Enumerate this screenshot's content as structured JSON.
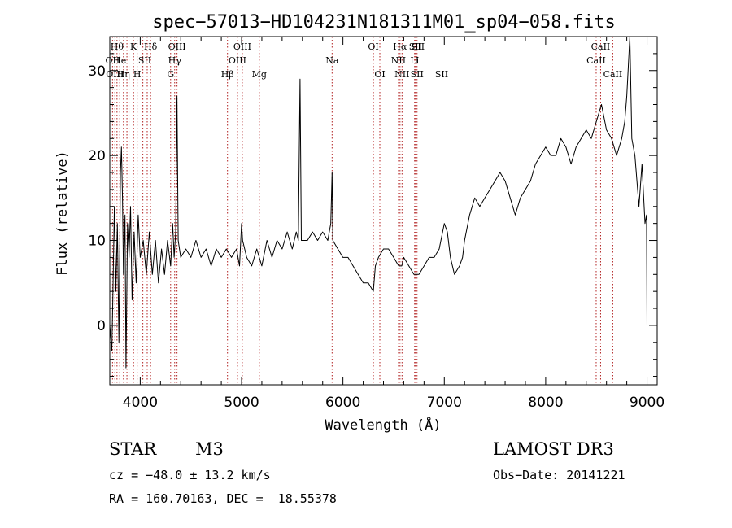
{
  "chart_data": {
    "type": "line",
    "title": "spec−57013−HD104231N181311M01_sp04−058.fits",
    "xlabel": "Wavelength (Å)",
    "ylabel": "Flux (relative)",
    "xlim": [
      3700,
      9100
    ],
    "ylim": [
      -7,
      34
    ],
    "xticks": [
      4000,
      5000,
      6000,
      7000,
      8000,
      9000
    ],
    "xtick_labels": [
      "4000",
      "5000",
      "6000",
      "7000",
      "8000",
      "9000"
    ],
    "yticks": [
      0,
      10,
      20,
      30
    ],
    "ytick_labels": [
      "0",
      "10",
      "20",
      "30"
    ],
    "grid": false,
    "series": [
      {
        "name": "flux",
        "color": "#000000",
        "points": [
          [
            3700,
            0
          ],
          [
            3720,
            -3
          ],
          [
            3730,
            3
          ],
          [
            3745,
            14
          ],
          [
            3760,
            4
          ],
          [
            3775,
            12
          ],
          [
            3790,
            -2
          ],
          [
            3805,
            18
          ],
          [
            3815,
            21
          ],
          [
            3825,
            15
          ],
          [
            3835,
            6
          ],
          [
            3850,
            13
          ],
          [
            3860,
            -5
          ],
          [
            3875,
            12
          ],
          [
            3890,
            8
          ],
          [
            3905,
            14
          ],
          [
            3920,
            3
          ],
          [
            3940,
            11
          ],
          [
            3960,
            5
          ],
          [
            3980,
            13
          ],
          [
            4000,
            8
          ],
          [
            4030,
            10
          ],
          [
            4060,
            6
          ],
          [
            4090,
            11
          ],
          [
            4120,
            6
          ],
          [
            4150,
            10
          ],
          [
            4180,
            5
          ],
          [
            4210,
            9
          ],
          [
            4240,
            6
          ],
          [
            4270,
            10
          ],
          [
            4300,
            7
          ],
          [
            4320,
            12
          ],
          [
            4335,
            8
          ],
          [
            4350,
            11
          ],
          [
            4363,
            27
          ],
          [
            4375,
            10
          ],
          [
            4400,
            8
          ],
          [
            4450,
            9
          ],
          [
            4500,
            8
          ],
          [
            4550,
            10
          ],
          [
            4600,
            8
          ],
          [
            4650,
            9
          ],
          [
            4700,
            7
          ],
          [
            4750,
            9
          ],
          [
            4800,
            8
          ],
          [
            4850,
            9
          ],
          [
            4900,
            8
          ],
          [
            4950,
            9
          ],
          [
            4980,
            7
          ],
          [
            5000,
            12
          ],
          [
            5010,
            10
          ],
          [
            5050,
            8
          ],
          [
            5100,
            7
          ],
          [
            5150,
            9
          ],
          [
            5200,
            7
          ],
          [
            5250,
            10
          ],
          [
            5300,
            8
          ],
          [
            5350,
            10
          ],
          [
            5400,
            9
          ],
          [
            5450,
            11
          ],
          [
            5500,
            9
          ],
          [
            5540,
            11
          ],
          [
            5560,
            10
          ],
          [
            5577,
            29
          ],
          [
            5590,
            10
          ],
          [
            5650,
            10
          ],
          [
            5700,
            11
          ],
          [
            5750,
            10
          ],
          [
            5800,
            11
          ],
          [
            5850,
            10
          ],
          [
            5880,
            12
          ],
          [
            5893,
            18
          ],
          [
            5900,
            10
          ],
          [
            5950,
            9
          ],
          [
            6000,
            8
          ],
          [
            6050,
            8
          ],
          [
            6100,
            7
          ],
          [
            6150,
            6
          ],
          [
            6200,
            5
          ],
          [
            6250,
            5
          ],
          [
            6300,
            4
          ],
          [
            6320,
            7
          ],
          [
            6350,
            8
          ],
          [
            6400,
            9
          ],
          [
            6450,
            9
          ],
          [
            6500,
            8
          ],
          [
            6550,
            7
          ],
          [
            6580,
            7
          ],
          [
            6600,
            8
          ],
          [
            6650,
            7
          ],
          [
            6700,
            6
          ],
          [
            6750,
            6
          ],
          [
            6800,
            7
          ],
          [
            6850,
            8
          ],
          [
            6900,
            8
          ],
          [
            6950,
            9
          ],
          [
            7000,
            12
          ],
          [
            7030,
            11
          ],
          [
            7060,
            8
          ],
          [
            7100,
            6
          ],
          [
            7150,
            7
          ],
          [
            7180,
            8
          ],
          [
            7200,
            10
          ],
          [
            7250,
            13
          ],
          [
            7300,
            15
          ],
          [
            7350,
            14
          ],
          [
            7400,
            15
          ],
          [
            7450,
            16
          ],
          [
            7500,
            17
          ],
          [
            7550,
            18
          ],
          [
            7600,
            17
          ],
          [
            7650,
            15
          ],
          [
            7700,
            13
          ],
          [
            7750,
            15
          ],
          [
            7800,
            16
          ],
          [
            7850,
            17
          ],
          [
            7900,
            19
          ],
          [
            7950,
            20
          ],
          [
            8000,
            21
          ],
          [
            8050,
            20
          ],
          [
            8100,
            20
          ],
          [
            8150,
            22
          ],
          [
            8200,
            21
          ],
          [
            8250,
            19
          ],
          [
            8300,
            21
          ],
          [
            8350,
            22
          ],
          [
            8400,
            23
          ],
          [
            8450,
            22
          ],
          [
            8500,
            24
          ],
          [
            8550,
            26
          ],
          [
            8600,
            23
          ],
          [
            8650,
            22
          ],
          [
            8700,
            20
          ],
          [
            8750,
            22
          ],
          [
            8780,
            24
          ],
          [
            8800,
            27
          ],
          [
            8830,
            34
          ],
          [
            8850,
            22
          ],
          [
            8880,
            20
          ],
          [
            8900,
            17
          ],
          [
            8920,
            14
          ],
          [
            8950,
            19
          ],
          [
            8980,
            12
          ],
          [
            8995,
            13
          ],
          [
            9000,
            0
          ]
        ]
      }
    ],
    "line_markers": {
      "color": "#b22222",
      "lines": [
        {
          "wavelength": 3727,
          "label": "OII",
          "row": 2
        },
        {
          "wavelength": 3750,
          "label": "OIII",
          "row": 3
        },
        {
          "wavelength": 3771,
          "label": "Hθ",
          "row": 1
        },
        {
          "wavelength": 3798,
          "label": "He",
          "row": 2
        },
        {
          "wavelength": 3835,
          "label": "Hη",
          "row": 3
        },
        {
          "wavelength": 3869,
          "label": "",
          "row": 0
        },
        {
          "wavelength": 3889,
          "label": "",
          "row": 0
        },
        {
          "wavelength": 3934,
          "label": "K",
          "row": 1
        },
        {
          "wavelength": 3970,
          "label": "H",
          "row": 3
        },
        {
          "wavelength": 4026,
          "label": "",
          "row": 0
        },
        {
          "wavelength": 4069,
          "label": "",
          "row": 0
        },
        {
          "wavelength": 4102,
          "label": "Hδ",
          "row": 1
        },
        {
          "wavelength": 4300,
          "label": "G",
          "row": 3
        },
        {
          "wavelength": 4340,
          "label": "Hγ",
          "row": 2
        },
        {
          "wavelength": 4363,
          "label": "OIII",
          "row": 1
        },
        {
          "wavelength": 4861,
          "label": "Hβ",
          "row": 3
        },
        {
          "wavelength": 4959,
          "label": "OIII",
          "row": 2
        },
        {
          "wavelength": 5007,
          "label": "OIII",
          "row": 1
        },
        {
          "wavelength": 5175,
          "label": "Mg",
          "row": 3
        },
        {
          "wavelength": 5893,
          "label": "Na",
          "row": 2
        },
        {
          "wavelength": 6300,
          "label": "OI",
          "row": 1
        },
        {
          "wavelength": 6364,
          "label": "OI",
          "row": 3
        },
        {
          "wavelength": 6548,
          "label": "NII",
          "row": 2
        },
        {
          "wavelength": 6563,
          "label": "Hα",
          "row": 1
        },
        {
          "wavelength": 6583,
          "label": "NII",
          "row": 3
        },
        {
          "wavelength": 6707,
          "label": "Li",
          "row": 2
        },
        {
          "wavelength": 6716,
          "label": "SII",
          "row": 1
        },
        {
          "wavelength": 6731,
          "label": "SII",
          "row": 3
        },
        {
          "wavelength": 8498,
          "label": "CaII",
          "row": 2
        },
        {
          "wavelength": 8542,
          "label": "CaII",
          "row": 1
        },
        {
          "wavelength": 8662,
          "label": "CaII",
          "row": 3
        }
      ]
    }
  },
  "info": {
    "class_label": "STAR",
    "subclass": "M3",
    "survey": "LAMOST DR3",
    "redshift_text": "cz = −48.0 ± 13.2 km/s",
    "obs_date_text": "Obs−Date: 20141221",
    "coords_text": "RA = 160.70163, DEC =  18.55378"
  },
  "extra_labels": [
    "SII",
    "SII",
    "I",
    "SII"
  ]
}
